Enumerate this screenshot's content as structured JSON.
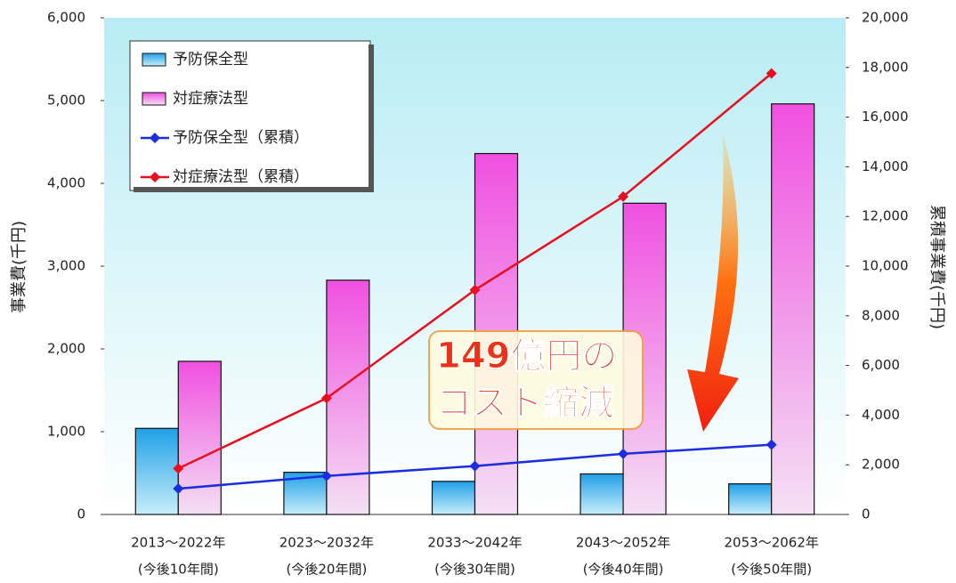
{
  "chart_data": {
    "type": "bar",
    "categories": [
      "2013～2022年",
      "2023～2032年",
      "2033～2042年",
      "2043～2052年",
      "2053～2062年"
    ],
    "category_sublabels": [
      "(今後10年間)",
      "(今後20年間)",
      "(今後30年間)",
      "(今後40年間)",
      "(今後50年間)"
    ],
    "y_label": "事業費(千円)",
    "y2_label": "累積事業費(千円)",
    "annotation": [
      "149億円の",
      "コスト縮減"
    ],
    "ylim": [
      0,
      6000
    ],
    "yticks": [
      0,
      {
        "value": 1000,
        "label": "1,000"
      },
      {
        "value": 2000,
        "label": "2,000"
      },
      {
        "value": 3000,
        "label": "3,000"
      },
      {
        "value": 4000,
        "label": "4,000"
      },
      {
        "value": 5000,
        "label": "5,000"
      },
      {
        "value": 6000,
        "label": "6,000"
      }
    ],
    "y2lim": [
      0,
      20000
    ],
    "y2ticks": [
      0,
      {
        "value": 2000,
        "label": "2,000"
      },
      {
        "value": 4000,
        "label": "4,000"
      },
      {
        "value": 6000,
        "label": "6,000"
      },
      {
        "value": 8000,
        "label": "8,000"
      },
      {
        "value": 10000,
        "label": "10,000"
      },
      {
        "value": 12000,
        "label": "12,000"
      },
      {
        "value": 14000,
        "label": "14,000"
      },
      {
        "value": 16000,
        "label": "16,000"
      },
      {
        "value": 18000,
        "label": "18,000"
      },
      {
        "value": 20000,
        "label": "20,000"
      }
    ],
    "series": [
      {
        "name": "予防保全型",
        "type": "bar",
        "color": "#2aa8e8",
        "values": [
          1040,
          510,
          400,
          490,
          370
        ]
      },
      {
        "name": "対症療法型",
        "type": "bar",
        "color": "#f060e0",
        "values": [
          1850,
          2830,
          4360,
          3760,
          4960
        ]
      },
      {
        "name": "予防保全型（累積）",
        "type": "line",
        "axis": "y2",
        "color": "#1a2ee0",
        "values": [
          1040,
          1550,
          1950,
          2440,
          2810
        ]
      },
      {
        "name": "対症療法型（累積）",
        "type": "line",
        "axis": "y2",
        "color": "#e81020",
        "values": [
          1850,
          4680,
          9040,
          12800,
          17760
        ]
      }
    ]
  }
}
